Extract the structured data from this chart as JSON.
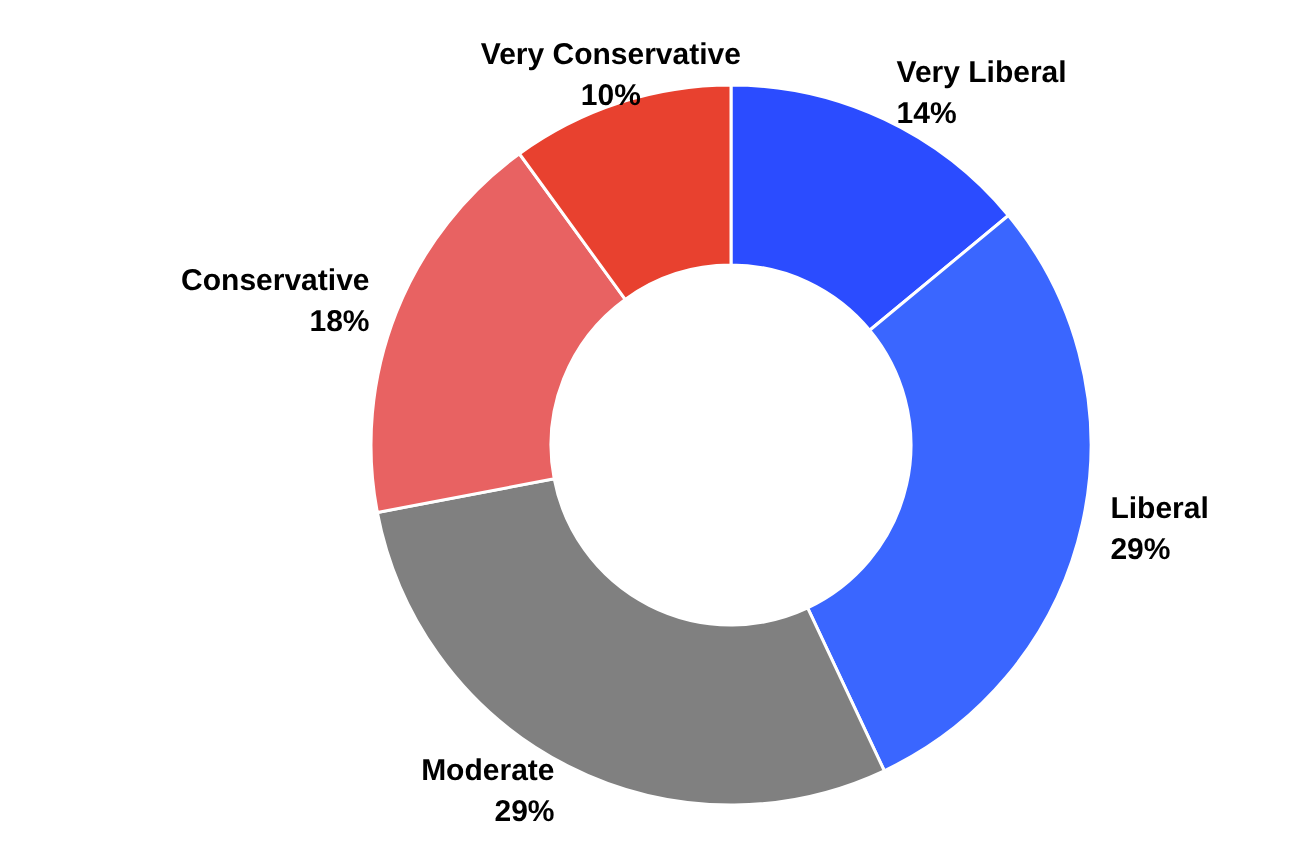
{
  "chart_data": {
    "type": "donut",
    "categories": [
      "Very Liberal",
      "Liberal",
      "Moderate",
      "Conservative",
      "Very Conservative"
    ],
    "values": [
      14,
      29,
      29,
      18,
      10
    ],
    "colors": [
      "#2b4cff",
      "#3a66ff",
      "#808080",
      "#e86262",
      "#e8412f"
    ],
    "value_labels": [
      "14%",
      "29%",
      "29%",
      "18%",
      "10%"
    ]
  }
}
